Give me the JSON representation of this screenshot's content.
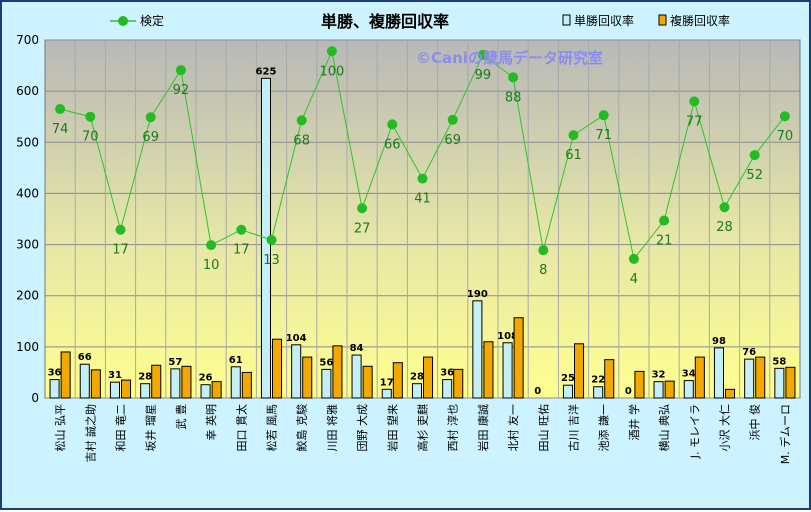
{
  "chart_data": {
    "type": "bar",
    "title": "単勝、複勝回収率",
    "watermark": "©Caniの競馬データ研究室",
    "ylim": [
      0,
      700
    ],
    "yticks": [
      0,
      100,
      200,
      300,
      400,
      500,
      600,
      700
    ],
    "categories": [
      "松山 弘平",
      "吉村 誠之助",
      "和田 竜二",
      "坂井 瑠星",
      "武 豊",
      "幸 英明",
      "田口 貫太",
      "松若 風馬",
      "鮫島 克駿",
      "川田 将雅",
      "団野 大成",
      "岩田 望来",
      "高杉 吏麒",
      "西村 淳也",
      "岩田 康誠",
      "北村 友一",
      "田山 旺佑",
      "古川 吉洋",
      "池添 謙一",
      "酒井 学",
      "横山 典弘",
      "J. モレイラ",
      "小沢 大仁",
      "浜中 俊",
      "M. デムーロ"
    ],
    "series": [
      {
        "name": "単勝回収率",
        "type": "bar",
        "color": "#c4eef8",
        "values": [
          36,
          66,
          31,
          28,
          57,
          26,
          61,
          625,
          104,
          56,
          84,
          17,
          28,
          36,
          190,
          108,
          0,
          25,
          22,
          0,
          32,
          34,
          98,
          76,
          58
        ]
      },
      {
        "name": "複勝回収率",
        "type": "bar",
        "color": "#f2a800",
        "values": [
          90,
          55,
          35,
          64,
          62,
          32,
          50,
          115,
          80,
          102,
          62,
          69,
          80,
          56,
          110,
          157,
          0,
          106,
          75,
          52,
          33,
          80,
          17,
          80,
          60
        ]
      },
      {
        "name": "検定",
        "type": "line",
        "color": "#2dc42d",
        "values": [
          565,
          550,
          329,
          549,
          641,
          299,
          329,
          309,
          543,
          678,
          371,
          535,
          429,
          544,
          671,
          627,
          289,
          514,
          553,
          272,
          347,
          580,
          373,
          475,
          551
        ],
        "labels": [
          74,
          70,
          17,
          69,
          92,
          10,
          17,
          13,
          68,
          100,
          27,
          66,
          41,
          69,
          99,
          88,
          8,
          61,
          71,
          4,
          21,
          77,
          28,
          52,
          70
        ]
      }
    ]
  }
}
